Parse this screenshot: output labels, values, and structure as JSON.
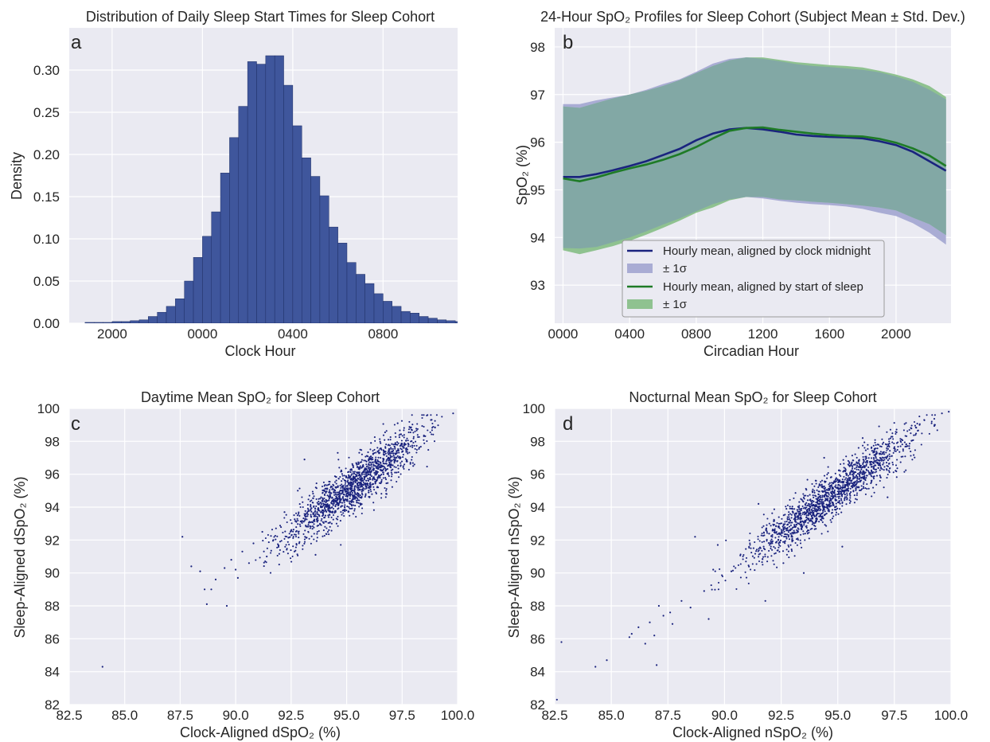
{
  "colors": {
    "panel_bg": "#eaeaf2",
    "grid": "#ffffff",
    "bar": "#3f569c",
    "bar_edge": "#1f2f66",
    "clock_line": "#1a237e",
    "clock_band": "#a9acd4",
    "sleep_line": "#1e7b26",
    "sleep_band": "#8fc290",
    "overlap_band": "#82a8a5",
    "scatter": "#1a237e"
  },
  "chart_data": [
    {
      "panel": "a",
      "type": "bar",
      "title": "Distribution of Daily Sleep Start Times for Sleep Cohort",
      "xlabel": "Clock Hour",
      "ylabel": "Density",
      "x_unit": "hours relative to midnight",
      "xlim": [
        -5.9,
        11.3
      ],
      "ylim": [
        0,
        0.35
      ],
      "x_ticks": [
        {
          "v": -4,
          "label": "2000"
        },
        {
          "v": 0,
          "label": "0000"
        },
        {
          "v": 4,
          "label": "0400"
        },
        {
          "v": 8,
          "label": "0800"
        }
      ],
      "y_ticks": [
        {
          "v": 0,
          "label": "0.00"
        },
        {
          "v": 0.05,
          "label": "0.05"
        },
        {
          "v": 0.1,
          "label": "0.10"
        },
        {
          "v": 0.15,
          "label": "0.15"
        },
        {
          "v": 0.2,
          "label": "0.20"
        },
        {
          "v": 0.25,
          "label": "0.25"
        },
        {
          "v": 0.3,
          "label": "0.30"
        }
      ],
      "bin_start": -5.2,
      "bin_width": 0.4,
      "values": [
        0.001,
        0.001,
        0.001,
        0.002,
        0.002,
        0.003,
        0.004,
        0.008,
        0.013,
        0.02,
        0.029,
        0.05,
        0.078,
        0.103,
        0.132,
        0.178,
        0.22,
        0.257,
        0.31,
        0.307,
        0.317,
        0.317,
        0.282,
        0.234,
        0.196,
        0.174,
        0.151,
        0.114,
        0.095,
        0.072,
        0.058,
        0.047,
        0.035,
        0.026,
        0.02,
        0.014,
        0.012,
        0.008,
        0.006,
        0.004,
        0.003,
        0.002,
        0.002,
        0.001,
        0.001,
        0.001,
        0.001,
        0.001,
        0.001,
        0.001,
        0.001,
        0.001,
        0.001,
        0.001,
        0.001
      ]
    },
    {
      "panel": "b",
      "type": "line",
      "title": "24-Hour SpO₂ Profiles for Sleep Cohort (Subject Mean ± Std. Dev.)",
      "xlabel": "Circadian Hour",
      "ylabel": "SpO₂ (%)",
      "xlim": [
        -0.5,
        23.3
      ],
      "ylim": [
        92.2,
        98.4
      ],
      "x_ticks": [
        {
          "v": 0,
          "label": "0000"
        },
        {
          "v": 4,
          "label": "0400"
        },
        {
          "v": 8,
          "label": "0800"
        },
        {
          "v": 12,
          "label": "1200"
        },
        {
          "v": 16,
          "label": "1600"
        },
        {
          "v": 20,
          "label": "2000"
        }
      ],
      "y_ticks": [
        {
          "v": 93,
          "label": "93"
        },
        {
          "v": 94,
          "label": "94"
        },
        {
          "v": 95,
          "label": "95"
        },
        {
          "v": 96,
          "label": "96"
        },
        {
          "v": 97,
          "label": "97"
        },
        {
          "v": 98,
          "label": "98"
        }
      ],
      "x": [
        0,
        1,
        2,
        3,
        4,
        5,
        6,
        7,
        8,
        9,
        10,
        11,
        12,
        13,
        14,
        15,
        16,
        17,
        18,
        19,
        20,
        21,
        22,
        23
      ],
      "series": [
        {
          "name": "Hourly mean, aligned by clock midnight",
          "band_name": "± 1σ",
          "mean": [
            95.27,
            95.27,
            95.33,
            95.41,
            95.5,
            95.6,
            95.73,
            95.86,
            96.04,
            96.18,
            96.27,
            96.3,
            96.27,
            96.22,
            96.16,
            96.13,
            96.11,
            96.1,
            96.08,
            96.02,
            95.94,
            95.8,
            95.6,
            95.4
          ],
          "upper": [
            96.8,
            96.8,
            96.88,
            96.94,
            97.0,
            97.1,
            97.22,
            97.32,
            97.48,
            97.65,
            97.75,
            97.78,
            97.75,
            97.7,
            97.64,
            97.6,
            97.58,
            97.55,
            97.52,
            97.47,
            97.38,
            97.27,
            97.1,
            96.9
          ],
          "lower": [
            93.78,
            93.77,
            93.8,
            93.9,
            94.0,
            94.13,
            94.27,
            94.4,
            94.55,
            94.7,
            94.8,
            94.85,
            94.82,
            94.77,
            94.73,
            94.7,
            94.68,
            94.65,
            94.6,
            94.52,
            94.45,
            94.3,
            94.1,
            93.85
          ]
        },
        {
          "name": "Hourly mean, aligned by start of sleep",
          "band_name": "± 1σ",
          "mean": [
            95.24,
            95.18,
            95.26,
            95.36,
            95.45,
            95.53,
            95.63,
            95.75,
            95.9,
            96.08,
            96.24,
            96.3,
            96.31,
            96.26,
            96.22,
            96.18,
            96.15,
            96.13,
            96.12,
            96.07,
            95.99,
            95.87,
            95.72,
            95.5
          ],
          "upper": [
            96.75,
            96.72,
            96.82,
            96.92,
            97.0,
            97.08,
            97.18,
            97.3,
            97.45,
            97.6,
            97.72,
            97.78,
            97.78,
            97.73,
            97.68,
            97.65,
            97.62,
            97.6,
            97.57,
            97.5,
            97.42,
            97.32,
            97.18,
            96.95
          ],
          "lower": [
            93.73,
            93.65,
            93.73,
            93.82,
            93.93,
            94.06,
            94.2,
            94.35,
            94.52,
            94.63,
            94.78,
            94.85,
            94.85,
            94.8,
            94.78,
            94.75,
            94.73,
            94.7,
            94.67,
            94.63,
            94.57,
            94.42,
            94.28,
            94.05
          ]
        }
      ],
      "legend_position": "lower-center"
    },
    {
      "panel": "c",
      "type": "scatter",
      "title": "Daytime Mean SpO₂ for Sleep Cohort",
      "xlabel": "Clock-Aligned dSpO₂ (%)",
      "ylabel": "Sleep-Aligned dSpO₂ (%)",
      "xlim": [
        82.5,
        100
      ],
      "ylim": [
        82,
        100
      ],
      "x_ticks": [
        {
          "v": 82.5,
          "label": "82.5"
        },
        {
          "v": 85,
          "label": "85.0"
        },
        {
          "v": 87.5,
          "label": "87.5"
        },
        {
          "v": 90,
          "label": "90.0"
        },
        {
          "v": 92.5,
          "label": "92.5"
        },
        {
          "v": 95,
          "label": "95.0"
        },
        {
          "v": 97.5,
          "label": "97.5"
        },
        {
          "v": 100,
          "label": "100.0"
        }
      ],
      "y_ticks": [
        {
          "v": 82,
          "label": "82"
        },
        {
          "v": 84,
          "label": "84"
        },
        {
          "v": 86,
          "label": "86"
        },
        {
          "v": 88,
          "label": "88"
        },
        {
          "v": 90,
          "label": "90"
        },
        {
          "v": 92,
          "label": "92"
        },
        {
          "v": 94,
          "label": "94"
        },
        {
          "v": 96,
          "label": "96"
        },
        {
          "v": 98,
          "label": "98"
        },
        {
          "v": 100,
          "label": "100"
        }
      ],
      "points": [
        [
          84.0,
          84.3
        ],
        [
          87.6,
          92.2
        ],
        [
          88.0,
          90.4
        ],
        [
          88.4,
          90.1
        ],
        [
          88.6,
          89.0
        ],
        [
          88.7,
          88.1
        ],
        [
          88.9,
          89.0
        ],
        [
          89.1,
          89.6
        ],
        [
          89.6,
          88.0
        ],
        [
          89.5,
          90.3
        ],
        [
          89.8,
          90.8
        ],
        [
          90.0,
          90.2
        ],
        [
          90.1,
          89.7
        ],
        [
          90.3,
          91.3
        ],
        [
          90.6,
          90.6
        ],
        [
          90.8,
          91.8
        ],
        [
          91.2,
          92.5
        ],
        [
          91.4,
          91.0
        ],
        [
          91.7,
          92.0
        ],
        [
          92.2,
          93.7
        ],
        [
          92.8,
          95.0
        ],
        [
          93.1,
          96.9
        ],
        [
          93.6,
          91.1
        ],
        [
          94.2,
          92.6
        ],
        [
          94.6,
          97.3
        ],
        [
          95.3,
          93.6
        ],
        [
          96.1,
          97.9
        ],
        [
          96.8,
          94.8
        ],
        [
          97.3,
          99.1
        ],
        [
          98.0,
          96.5
        ],
        [
          98.8,
          99.3
        ],
        [
          99.8,
          99.7
        ]
      ],
      "cloud": {
        "x_range": [
          90.8,
          99.4
        ],
        "x_mean": 95.3,
        "x_sd": 1.6,
        "slope": 1.0,
        "noise_sd": 0.75,
        "count": 1500
      }
    },
    {
      "panel": "d",
      "type": "scatter",
      "title": "Nocturnal Mean SpO₂ for Sleep Cohort",
      "xlabel": "Clock-Aligned nSpO₂ (%)",
      "ylabel": "Sleep-Aligned nSpO₂ (%)",
      "xlim": [
        82.5,
        100
      ],
      "ylim": [
        82,
        100
      ],
      "x_ticks": [
        {
          "v": 82.5,
          "label": "82.5"
        },
        {
          "v": 85,
          "label": "85.0"
        },
        {
          "v": 87.5,
          "label": "87.5"
        },
        {
          "v": 90,
          "label": "90.0"
        },
        {
          "v": 92.5,
          "label": "92.5"
        },
        {
          "v": 95,
          "label": "95.0"
        },
        {
          "v": 97.5,
          "label": "97.5"
        },
        {
          "v": 100,
          "label": "100.0"
        }
      ],
      "y_ticks": [
        {
          "v": 82,
          "label": "82"
        },
        {
          "v": 84,
          "label": "84"
        },
        {
          "v": 86,
          "label": "86"
        },
        {
          "v": 88,
          "label": "88"
        },
        {
          "v": 90,
          "label": "90"
        },
        {
          "v": 92,
          "label": "92"
        },
        {
          "v": 94,
          "label": "94"
        },
        {
          "v": 96,
          "label": "96"
        },
        {
          "v": 98,
          "label": "98"
        },
        {
          "v": 100,
          "label": "100"
        }
      ],
      "points": [
        [
          82.6,
          82.3
        ],
        [
          82.8,
          85.8
        ],
        [
          84.3,
          84.3
        ],
        [
          84.8,
          84.7
        ],
        [
          85.8,
          86.1
        ],
        [
          85.9,
          86.3
        ],
        [
          86.2,
          86.7
        ],
        [
          86.5,
          85.7
        ],
        [
          86.7,
          87.0
        ],
        [
          86.9,
          86.2
        ],
        [
          87.0,
          84.4
        ],
        [
          87.1,
          88.0
        ],
        [
          87.3,
          87.4
        ],
        [
          87.6,
          87.6
        ],
        [
          87.7,
          86.9
        ],
        [
          88.1,
          88.3
        ],
        [
          88.5,
          87.9
        ],
        [
          88.7,
          92.2
        ],
        [
          89.1,
          88.9
        ],
        [
          89.3,
          87.2
        ],
        [
          89.5,
          90.2
        ],
        [
          89.7,
          91.7
        ],
        [
          90.3,
          90.1
        ],
        [
          91.5,
          94.2
        ],
        [
          91.8,
          88.3
        ],
        [
          92.6,
          90.6
        ],
        [
          93.5,
          90.0
        ],
        [
          94.4,
          97.0
        ],
        [
          95.2,
          91.6
        ],
        [
          96.1,
          98.2
        ],
        [
          97.2,
          94.6
        ],
        [
          99.6,
          99.7
        ],
        [
          99.9,
          99.8
        ]
      ],
      "cloud": {
        "x_range": [
          89.0,
          99.5
        ],
        "x_mean": 94.8,
        "x_sd": 1.9,
        "slope": 1.0,
        "noise_sd": 0.7,
        "count": 1500
      }
    }
  ]
}
